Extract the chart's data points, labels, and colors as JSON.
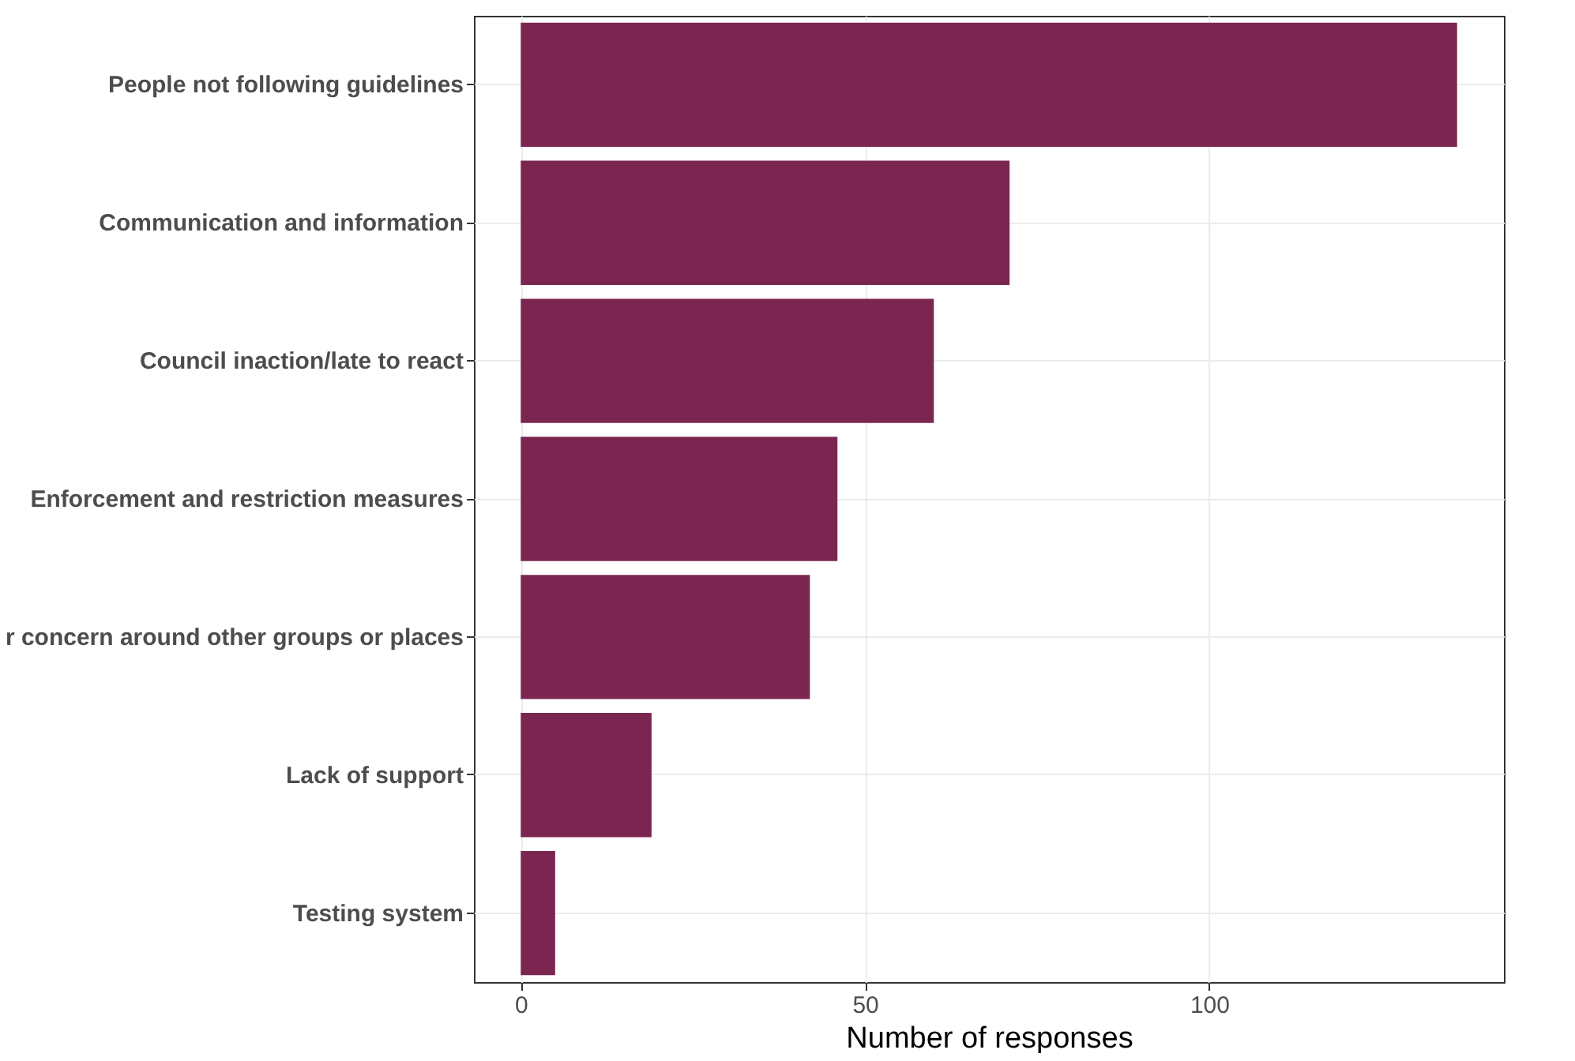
{
  "chart_data": {
    "type": "bar",
    "orientation": "horizontal",
    "xlabel": "Number of responses",
    "categories": [
      "People not following guidelines",
      "Communication and information",
      "Council inaction/late to react",
      "Enforcement and restriction measures",
      "r concern around other groups or places",
      "Lack of support",
      "Testing system"
    ],
    "values": [
      136,
      71,
      60,
      46,
      42,
      19,
      5
    ],
    "color": "#7b2650",
    "xlim": [
      -6.8,
      142.8
    ],
    "xticks": [
      0,
      50,
      100
    ],
    "grid": true
  }
}
